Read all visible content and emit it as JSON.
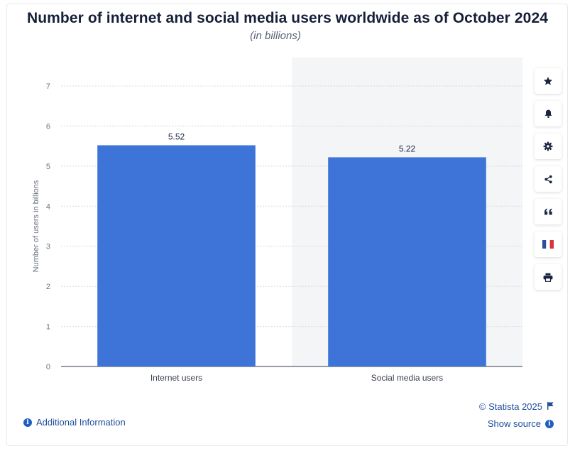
{
  "header": {
    "title": "Number of internet and social media users worldwide as of October 2024",
    "subtitle": "(in billions)"
  },
  "toolbar": [
    {
      "name": "favorite-star-icon"
    },
    {
      "name": "notification-bell-icon"
    },
    {
      "name": "settings-gear-icon"
    },
    {
      "name": "share-icon"
    },
    {
      "name": "cite-quote-icon"
    },
    {
      "name": "french-flag-icon"
    },
    {
      "name": "print-icon"
    }
  ],
  "footer": {
    "additional_info": "Additional Information",
    "copyright": "© Statista 2025",
    "show_source": "Show source"
  },
  "colors": {
    "bar": "#3e74d8",
    "text_dark": "#161f38",
    "link": "#1f4e9c",
    "axis_text": "#6b7280",
    "grid": "#d5d8df",
    "band": "#f4f5f7"
  },
  "chart_data": {
    "type": "bar",
    "categories": [
      "Internet users",
      "Social media users"
    ],
    "values": [
      5.52,
      5.22
    ],
    "value_labels": [
      "5.52",
      "5.22"
    ],
    "ylabel": "Number of users in billions",
    "xlabel": "",
    "ylim": [
      0,
      7
    ],
    "yticks": [
      0,
      1,
      2,
      3,
      4,
      5,
      6,
      7
    ],
    "grid": true
  }
}
